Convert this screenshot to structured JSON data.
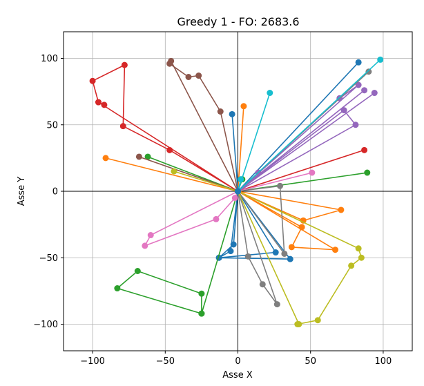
{
  "chart_data": {
    "type": "line",
    "title": "Greedy 1 - FO: 2683.6",
    "xlabel": "Asse X",
    "ylabel": "Asse Y",
    "xlim": [
      -120,
      120
    ],
    "ylim": [
      -120,
      120
    ],
    "xticks": [
      -100,
      -50,
      0,
      50,
      100
    ],
    "yticks": [
      -100,
      -50,
      0,
      50,
      100
    ],
    "grid": true,
    "zero_lines": true,
    "legend": "none",
    "depot": [
      0,
      0
    ],
    "series": [
      {
        "color": "#1f77b4",
        "points": [
          [
            0,
            0
          ],
          [
            83,
            97
          ],
          [
            0,
            0
          ],
          [
            -3,
            -40
          ],
          [
            -13,
            -50
          ],
          [
            36,
            -51
          ],
          [
            0,
            0
          ],
          [
            -5,
            -45
          ],
          [
            -13,
            -50
          ],
          [
            26,
            -46
          ],
          [
            0,
            0
          ]
        ]
      },
      {
        "color": "#ff7f0e",
        "points": [
          [
            0,
            0
          ],
          [
            -91,
            25
          ],
          [
            0,
            0
          ],
          [
            4,
            64
          ],
          [
            0,
            0
          ],
          [
            44,
            -27
          ],
          [
            37,
            -42
          ],
          [
            67,
            -44
          ],
          [
            0,
            0
          ],
          [
            45,
            -22
          ],
          [
            71,
            -14
          ],
          [
            0,
            0
          ],
          [
            44,
            -27
          ]
        ]
      },
      {
        "color": "#2ca02c",
        "points": [
          [
            0,
            0
          ],
          [
            -62,
            26
          ],
          [
            0,
            0
          ],
          [
            89,
            14
          ],
          [
            0,
            0
          ],
          [
            -25,
            -92
          ],
          [
            -25,
            -77
          ],
          [
            -69,
            -60
          ],
          [
            -83,
            -73
          ],
          [
            -25,
            -92
          ],
          [
            0,
            0
          ],
          [
            3,
            9
          ]
        ]
      },
      {
        "color": "#d62728",
        "points": [
          [
            0,
            0
          ],
          [
            -47,
            31
          ],
          [
            -79,
            49
          ],
          [
            -78,
            95
          ],
          [
            -100,
            83
          ],
          [
            -96,
            67
          ],
          [
            -92,
            65
          ],
          [
            -96,
            67
          ],
          [
            0,
            0
          ],
          [
            87,
            31
          ],
          [
            0,
            0
          ]
        ]
      },
      {
        "color": "#9467bd",
        "points": [
          [
            0,
            0
          ],
          [
            70,
            70
          ],
          [
            83,
            80
          ],
          [
            0,
            0
          ],
          [
            94,
            74
          ],
          [
            0,
            0
          ],
          [
            87,
            76
          ],
          [
            0,
            0
          ],
          [
            73,
            61
          ],
          [
            81,
            50
          ],
          [
            0,
            0
          ],
          [
            14,
            14
          ]
        ]
      },
      {
        "color": "#8c564b",
        "points": [
          [
            0,
            0
          ],
          [
            -12,
            60
          ],
          [
            -27,
            87
          ],
          [
            -34,
            86
          ],
          [
            -47,
            96
          ],
          [
            -46,
            98
          ],
          [
            0,
            0
          ],
          [
            -68,
            26
          ],
          [
            0,
            0
          ]
        ]
      },
      {
        "color": "#e377c2",
        "points": [
          [
            0,
            0
          ],
          [
            51,
            14
          ],
          [
            0,
            0
          ],
          [
            -2,
            -5
          ],
          [
            -15,
            -21
          ],
          [
            -64,
            -41
          ],
          [
            -60,
            -33
          ],
          [
            0,
            0
          ]
        ]
      },
      {
        "color": "#7f7f7f",
        "points": [
          [
            0,
            0
          ],
          [
            90,
            90
          ],
          [
            0,
            0
          ],
          [
            29,
            4
          ],
          [
            32,
            -47
          ],
          [
            0,
            0
          ],
          [
            7,
            -49
          ],
          [
            17,
            -70
          ],
          [
            27,
            -85
          ],
          [
            0,
            0
          ]
        ]
      },
      {
        "color": "#bcbd22",
        "points": [
          [
            0,
            0
          ],
          [
            83,
            -43
          ],
          [
            85,
            -50
          ],
          [
            78,
            -56
          ],
          [
            55,
            -97
          ],
          [
            41,
            -100
          ],
          [
            42,
            -100
          ],
          [
            0,
            0
          ],
          [
            -44,
            15
          ],
          [
            0,
            0
          ]
        ]
      },
      {
        "color": "#17becf",
        "points": [
          [
            0,
            0
          ],
          [
            98,
            99
          ],
          [
            0,
            0
          ],
          [
            22,
            74
          ],
          [
            0,
            0
          ],
          [
            2,
            9
          ],
          [
            0,
            0
          ]
        ]
      },
      {
        "color": "#1f77b4",
        "points": [
          [
            0,
            0
          ],
          [
            -4,
            58
          ],
          [
            0,
            0
          ]
        ]
      }
    ]
  }
}
